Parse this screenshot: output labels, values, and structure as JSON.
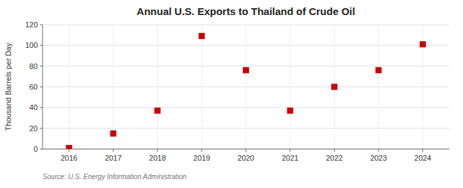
{
  "chart_data": {
    "type": "scatter",
    "title": "Annual U.S. Exports to Thailand of Crude Oil",
    "y_label": "Thousand Barrels per Day",
    "annotations": [
      "Source: U.S. Energy Information Administration"
    ],
    "x": [
      2016,
      2017,
      2018,
      2019,
      2020,
      2021,
      2022,
      2023,
      2024
    ],
    "values": [
      1,
      15,
      37,
      109,
      76,
      37,
      60,
      76,
      101
    ],
    "xlim": [
      2015.4,
      2024.6
    ],
    "xticks": [
      2016,
      2017,
      2018,
      2019,
      2020,
      2021,
      2022,
      2023,
      2024
    ],
    "ylim": [
      0,
      120
    ],
    "yticks": [
      0,
      20,
      40,
      60,
      80,
      100,
      120
    ],
    "color": "#cc0000",
    "marker": "square",
    "grid": true
  }
}
